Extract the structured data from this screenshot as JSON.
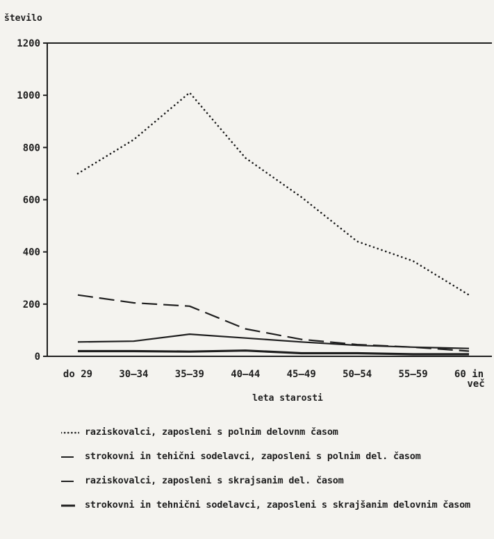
{
  "chart_data": {
    "type": "line",
    "title": "",
    "ylabel": "število",
    "xlabel": "leta starosti",
    "categories": [
      "do 29",
      "30–34",
      "35–39",
      "40–44",
      "45–49",
      "50–54",
      "55–59",
      "60 in več"
    ],
    "ylim": [
      0,
      1200
    ],
    "yticks": [
      0,
      200,
      400,
      600,
      800,
      1000,
      1200
    ],
    "grid": false,
    "legend_position": "bottom",
    "series": [
      {
        "name": "raziskovalci, zaposleni s polnim delovnm časom",
        "style": "dotted",
        "values": [
          700,
          830,
          1010,
          760,
          610,
          440,
          365,
          235
        ]
      },
      {
        "name": "strokovni in tehični sodelavci, zaposleni s polnim del. časom",
        "style": "dashed",
        "values": [
          235,
          205,
          192,
          105,
          65,
          45,
          35,
          20
        ]
      },
      {
        "name": "raziskovalci, zaposleni s skrajsanim del. časom",
        "style": "solid-thin",
        "values": [
          55,
          58,
          85,
          70,
          55,
          42,
          35,
          30
        ]
      },
      {
        "name": "strokovni in tehnični sodelavci, zaposleni s skrajšanim delovnim časom",
        "style": "solid-thick",
        "values": [
          20,
          20,
          18,
          22,
          12,
          12,
          8,
          8
        ]
      }
    ]
  },
  "colors": {
    "ink": "#1e1e1e",
    "paper": "#f4f3ef"
  }
}
